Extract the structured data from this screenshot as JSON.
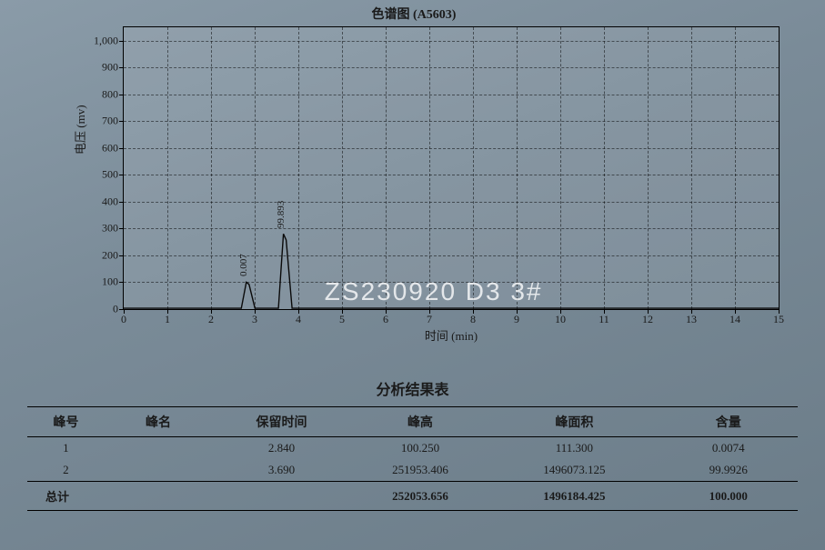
{
  "chart": {
    "title": "色谱图 (A5603)",
    "type": "line",
    "ylabel": "电压 (mv)",
    "xlabel": "时间 (min)",
    "xlim": [
      0,
      15
    ],
    "ylim": [
      0,
      1050
    ],
    "xtick_step": 1,
    "yticks": [
      0,
      100,
      200,
      300,
      400,
      500,
      600,
      700,
      800,
      900,
      1000
    ],
    "background_color": "#8a9ba8",
    "grid_color": "#000000",
    "grid_dash": "4,4",
    "line_color": "#0a0a0a",
    "line_width": 1.4,
    "watermark": "ZS230920 D3 3#",
    "watermark_color": "rgba(255,255,255,0.78)",
    "watermark_fontsize": 28,
    "peaks": [
      {
        "rt": 2.84,
        "height": 100.25,
        "label": "0.007"
      },
      {
        "rt": 3.69,
        "height": 251953.406,
        "display_height": 280,
        "label": "99.893"
      }
    ],
    "label_fontsize": 11,
    "axis_fontsize": 12,
    "title_fontsize": 14
  },
  "table": {
    "title": "分析结果表",
    "columns": [
      "峰号",
      "峰名",
      "保留时间",
      "峰高",
      "峰面积",
      "含量"
    ],
    "rows": [
      [
        "1",
        "",
        "2.840",
        "100.250",
        "111.300",
        "0.0074"
      ],
      [
        "2",
        "",
        "3.690",
        "251953.406",
        "1496073.125",
        "99.9926"
      ]
    ],
    "total_label": "总计",
    "total_row": [
      "",
      "",
      "",
      "252053.656",
      "1496184.425",
      "100.000"
    ]
  }
}
